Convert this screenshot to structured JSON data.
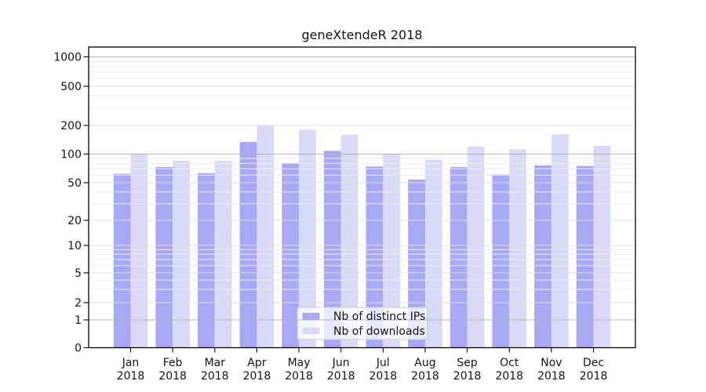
{
  "title": "geneXtendeR 2018",
  "chart_data": {
    "type": "bar",
    "title": "geneXtendeR 2018",
    "categories": [
      "Jan",
      "Feb",
      "Mar",
      "Apr",
      "May",
      "Jun",
      "Jul",
      "Aug",
      "Sep",
      "Oct",
      "Nov",
      "Dec"
    ],
    "xlabel_year": "2018",
    "series": [
      {
        "name": "Nb of distinct IPs",
        "color": "#a8a8f5",
        "values": [
          62,
          73,
          63,
          134,
          80,
          108,
          74,
          54,
          73,
          61,
          76,
          75
        ]
      },
      {
        "name": "Nb of downloads",
        "color": "#dadaf8",
        "values": [
          100,
          85,
          85,
          198,
          181,
          160,
          100,
          87,
          120,
          112,
          162,
          122
        ]
      }
    ],
    "yscale": "log",
    "yticks": [
      0,
      1,
      2,
      5,
      10,
      20,
      50,
      100,
      200,
      500,
      1000
    ],
    "ylim": [
      0,
      1000
    ],
    "grid": true,
    "legend_position": "bottom-center",
    "colors": {
      "grid_minor": "#ebebeb",
      "grid_major": "#dedede",
      "grid_emphasis": "#b5b5b5",
      "axis": "#000000",
      "legend_border": "#cccccc"
    }
  }
}
